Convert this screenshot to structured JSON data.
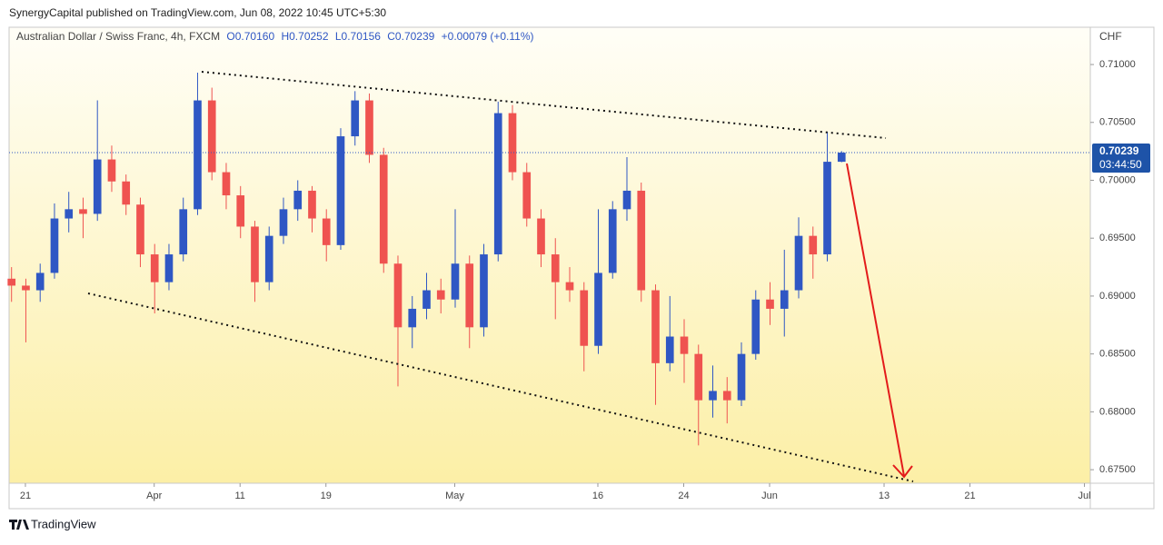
{
  "header": {
    "published": "SynergyCapital published on TradingView.com, Jun 08, 2022 10:45 UTC+5:30"
  },
  "legend": {
    "symbol": "Australian Dollar / Swiss Franc, 4h, FXCM",
    "open": "O0.70160",
    "high": "H0.70252",
    "low": "L0.70156",
    "close": "C0.70239",
    "change": "+0.00079 (+0.11%)"
  },
  "chart_data": {
    "type": "candlestick",
    "up_color": "#2f57c4",
    "down_color": "#ef5350",
    "x": [
      -1,
      0,
      1,
      2,
      3,
      4,
      5,
      6,
      7,
      8,
      9,
      10,
      11,
      12,
      13,
      14,
      15,
      16,
      17,
      18,
      19,
      20,
      21,
      22,
      23,
      24,
      25,
      26,
      27,
      28,
      29,
      30,
      31,
      32,
      33,
      34,
      35,
      36,
      37,
      38,
      39,
      40,
      41,
      42,
      43,
      44,
      45,
      46,
      47,
      48,
      49,
      50,
      51,
      52,
      53,
      54,
      55,
      56,
      57
    ],
    "open": [
      0.6915,
      0.6909,
      0.6905,
      0.692,
      0.6967,
      0.6975,
      0.6971,
      0.7018,
      0.6999,
      0.6979,
      0.6936,
      0.6912,
      0.6936,
      0.6975,
      0.7069,
      0.7007,
      0.6987,
      0.696,
      0.6912,
      0.6952,
      0.6975,
      0.6991,
      0.6967,
      0.6944,
      0.7038,
      0.7069,
      0.7022,
      0.6928,
      0.6873,
      0.6889,
      0.6905,
      0.6897,
      0.6928,
      0.6873,
      0.6936,
      0.7058,
      0.7007,
      0.6967,
      0.6936,
      0.6912,
      0.6905,
      0.6857,
      0.692,
      0.6975,
      0.6991,
      0.6905,
      0.6842,
      0.6865,
      0.685,
      0.681,
      0.6818,
      0.681,
      0.685,
      0.6897,
      0.6889,
      0.6905,
      0.6952,
      0.6936,
      0.7016
    ],
    "high": [
      0.6925,
      0.6915,
      0.6928,
      0.698,
      0.699,
      0.6985,
      0.7069,
      0.703,
      0.7005,
      0.6985,
      0.6945,
      0.6945,
      0.6985,
      0.7093,
      0.708,
      0.7015,
      0.6995,
      0.6965,
      0.696,
      0.6985,
      0.7,
      0.6995,
      0.6975,
      0.7045,
      0.7077,
      0.7075,
      0.7028,
      0.6935,
      0.69,
      0.692,
      0.6915,
      0.6975,
      0.6935,
      0.6945,
      0.7068,
      0.7065,
      0.7015,
      0.6975,
      0.695,
      0.6925,
      0.6912,
      0.6975,
      0.6982,
      0.702,
      0.6998,
      0.691,
      0.69,
      0.688,
      0.6858,
      0.684,
      0.683,
      0.686,
      0.6905,
      0.6912,
      0.694,
      0.6968,
      0.696,
      0.7042,
      0.70252
    ],
    "low": [
      0.6895,
      0.686,
      0.6895,
      0.6915,
      0.6955,
      0.695,
      0.6965,
      0.699,
      0.697,
      0.6925,
      0.6885,
      0.6905,
      0.693,
      0.697,
      0.7,
      0.6975,
      0.695,
      0.6895,
      0.6905,
      0.6945,
      0.6965,
      0.6955,
      0.693,
      0.694,
      0.703,
      0.7015,
      0.692,
      0.6822,
      0.6855,
      0.688,
      0.6885,
      0.689,
      0.6855,
      0.6865,
      0.693,
      0.7,
      0.696,
      0.6925,
      0.688,
      0.6895,
      0.6835,
      0.685,
      0.6915,
      0.6965,
      0.6895,
      0.6806,
      0.6835,
      0.6825,
      0.6771,
      0.6795,
      0.679,
      0.6805,
      0.6845,
      0.6875,
      0.6865,
      0.6898,
      0.6915,
      0.693,
      0.70156
    ],
    "close": [
      0.6909,
      0.6905,
      0.692,
      0.6967,
      0.6975,
      0.6971,
      0.7018,
      0.6999,
      0.6979,
      0.6936,
      0.6912,
      0.6936,
      0.6975,
      0.7069,
      0.7007,
      0.6987,
      0.696,
      0.6912,
      0.6952,
      0.6975,
      0.6991,
      0.6967,
      0.6944,
      0.7038,
      0.7069,
      0.7022,
      0.6928,
      0.6873,
      0.6889,
      0.6905,
      0.6897,
      0.6928,
      0.6873,
      0.6936,
      0.7058,
      0.7007,
      0.6967,
      0.6936,
      0.6912,
      0.6905,
      0.6857,
      0.692,
      0.6975,
      0.6991,
      0.6905,
      0.6842,
      0.6865,
      0.685,
      0.681,
      0.6818,
      0.681,
      0.685,
      0.6897,
      0.6889,
      0.6905,
      0.6952,
      0.6936,
      0.7016,
      0.70239
    ],
    "xlim": [
      -1.14,
      74.41
    ],
    "xticks": [
      {
        "value": 0,
        "label": "21"
      },
      {
        "value": 9,
        "label": "Apr"
      },
      {
        "value": 15,
        "label": "11"
      },
      {
        "value": 21,
        "label": "19"
      },
      {
        "value": 30,
        "label": "May"
      },
      {
        "value": 40,
        "label": "16"
      },
      {
        "value": 46,
        "label": "24"
      },
      {
        "value": 52,
        "label": "Jun"
      },
      {
        "value": 60,
        "label": "13"
      },
      {
        "value": 66,
        "label": "21"
      },
      {
        "value": 74,
        "label": "Jul"
      }
    ],
    "ylim": [
      0.67383,
      0.71322
    ],
    "yticks": [
      {
        "value": 0.675,
        "label": "0.67500"
      },
      {
        "value": 0.68,
        "label": "0.68000"
      },
      {
        "value": 0.685,
        "label": "0.68500"
      },
      {
        "value": 0.69,
        "label": "0.69000"
      },
      {
        "value": 0.695,
        "label": "0.69500"
      },
      {
        "value": 0.7,
        "label": "0.70000"
      },
      {
        "value": 0.705,
        "label": "0.70500"
      },
      {
        "value": 0.71,
        "label": "0.71000"
      }
    ],
    "currency": "CHF",
    "last_price": {
      "value": 0.70239,
      "label": "0.70239"
    },
    "countdown": "03:44:50"
  },
  "footer": {
    "brand": "TradingView"
  }
}
